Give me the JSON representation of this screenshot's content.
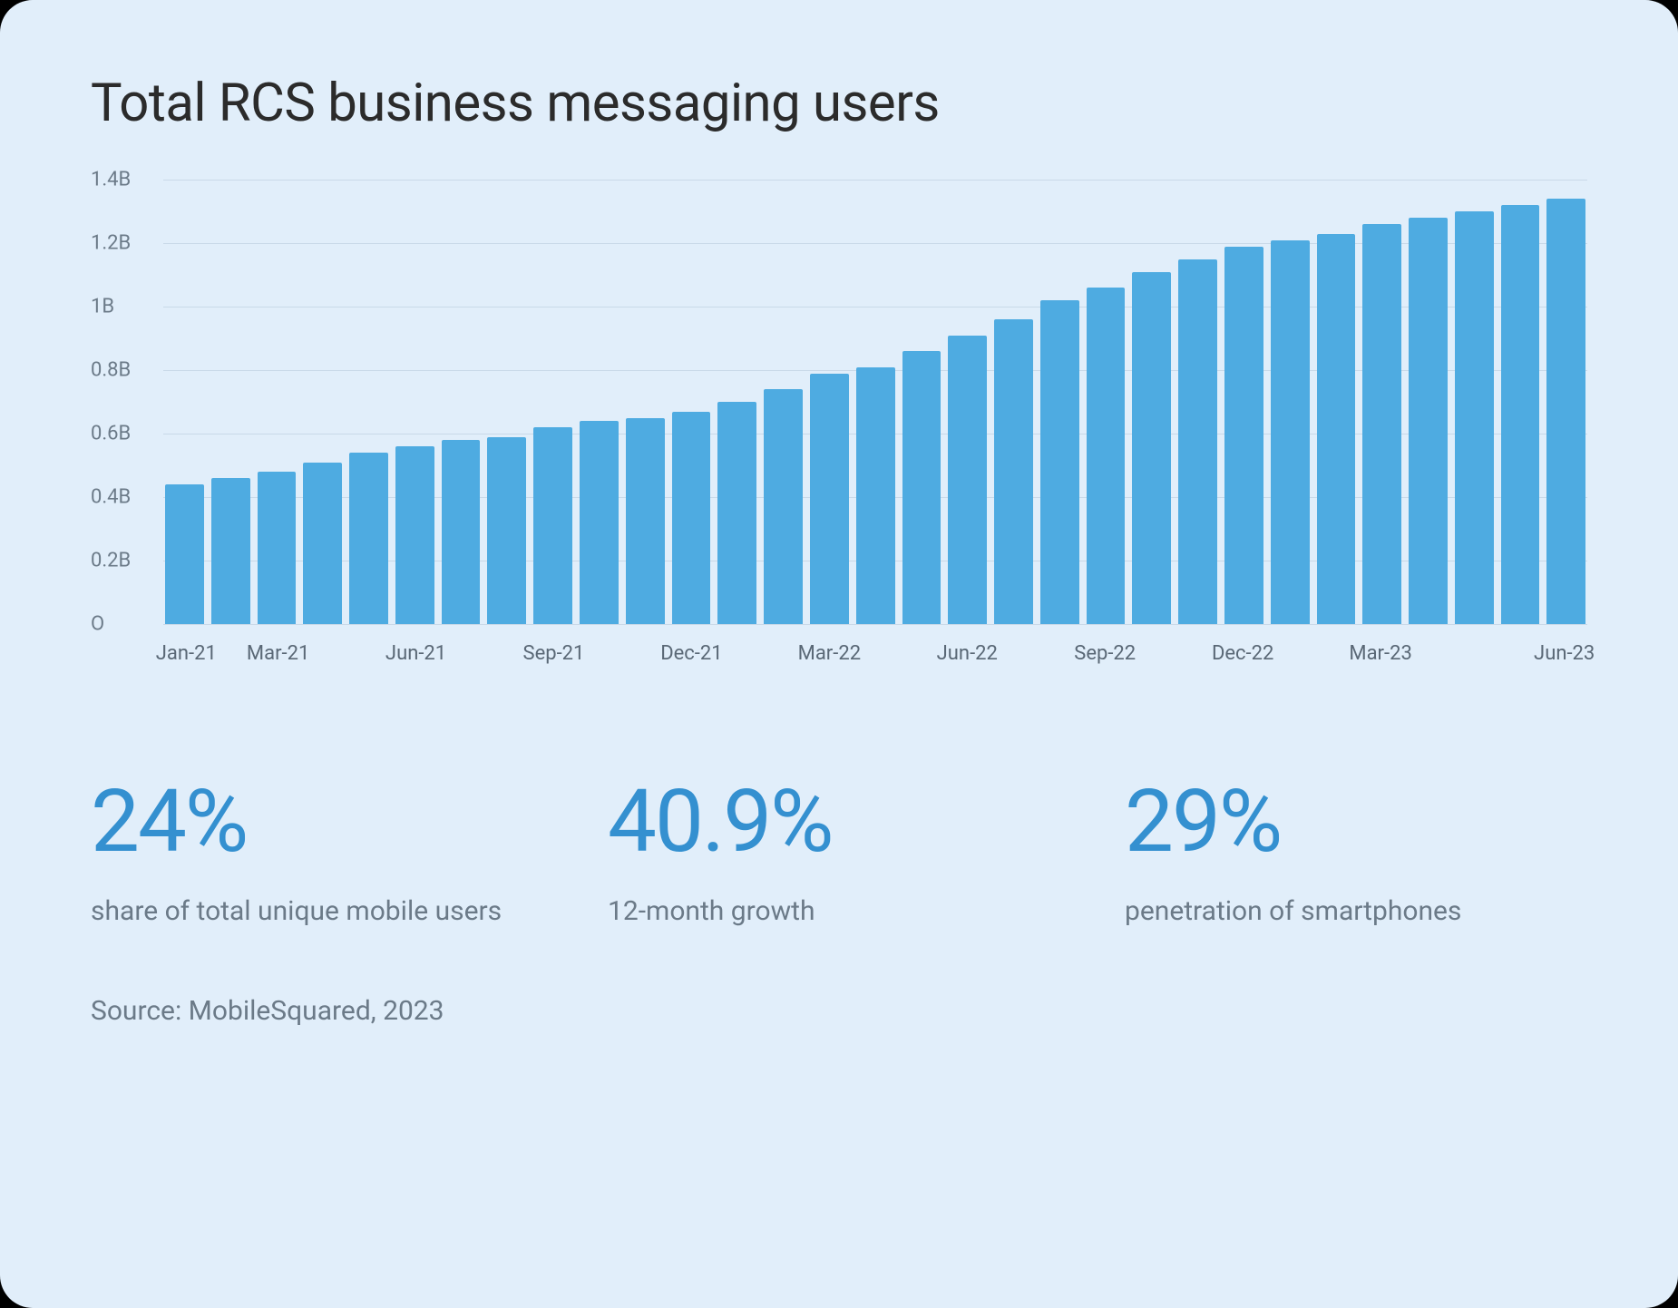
{
  "title": "Total RCS business messaging users",
  "chart": {
    "type": "bar",
    "background_color": "#e1eefa",
    "bar_color": "#4eabe1",
    "grid_color": "#c9d9e8",
    "text_color": "#6b7a88",
    "ylim": [
      0,
      1.4
    ],
    "ytick_step": 0.2,
    "ytick_labels": [
      "O",
      "0.2B",
      "0.4B",
      "0.6B",
      "0.8B",
      "1B",
      "1.2B",
      "1.4B"
    ],
    "bar_gap": 8,
    "values": [
      0.44,
      0.46,
      0.48,
      0.51,
      0.54,
      0.56,
      0.58,
      0.59,
      0.62,
      0.64,
      0.65,
      0.67,
      0.7,
      0.74,
      0.79,
      0.81,
      0.86,
      0.91,
      0.96,
      1.02,
      1.06,
      1.11,
      1.15,
      1.19,
      1.21,
      1.23,
      1.26,
      1.28,
      1.3,
      1.32,
      1.34
    ],
    "xaxis_labels": [
      {
        "pos": 0,
        "label": "Jan-21"
      },
      {
        "pos": 2,
        "label": "Mar-21"
      },
      {
        "pos": 5,
        "label": "Jun-21"
      },
      {
        "pos": 8,
        "label": "Sep-21"
      },
      {
        "pos": 11,
        "label": "Dec-21"
      },
      {
        "pos": 14,
        "label": "Mar-22"
      },
      {
        "pos": 17,
        "label": "Jun-22"
      },
      {
        "pos": 20,
        "label": "Sep-22"
      },
      {
        "pos": 23,
        "label": "Dec-22"
      },
      {
        "pos": 26,
        "label": "Mar-23"
      },
      {
        "pos": 30,
        "label": "Jun-23"
      }
    ]
  },
  "stats": [
    {
      "value": "24%",
      "label": "share of total unique mobile users"
    },
    {
      "value": "40.9%",
      "label": "12-month growth"
    },
    {
      "value": "29%",
      "label": "penetration of smartphones"
    }
  ],
  "source": "Source: MobileSquared, 2023",
  "colors": {
    "card_bg": "#e1eefa",
    "title_text": "#2b2b2b",
    "stat_value": "#3490d0",
    "stat_label": "#6b7a88",
    "axis_text": "#6b7a88"
  },
  "typography": {
    "title_fontsize": 58,
    "stat_value_fontsize": 96,
    "stat_label_fontsize": 30,
    "axis_label_fontsize": 22,
    "source_fontsize": 30
  }
}
